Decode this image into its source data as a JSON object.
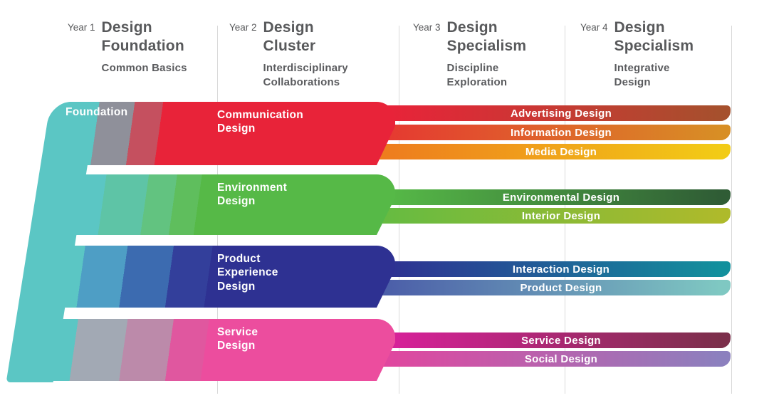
{
  "page": {
    "background": "#ffffff",
    "divider_color": "#d9d9d9"
  },
  "columns": [
    {
      "year": "Year 1",
      "title": "Design\nFoundation",
      "subtitle": "Common Basics"
    },
    {
      "year": "Year 2",
      "title": "Design\nCluster",
      "subtitle": "Interdisciplinary\nCollaborations"
    },
    {
      "year": "Year 3",
      "title": "Design\nSpecialism",
      "subtitle": "Discipline\nExploration"
    },
    {
      "year": "Year 4",
      "title": "Design\nSpecialism",
      "subtitle": "Integrative\nDesign"
    }
  ],
  "foundation": {
    "label": "Foundation",
    "color": "#5BC6C4"
  },
  "clusters": [
    {
      "label": "Communication\nDesign",
      "color": "#E82339",
      "slices": [
        {
          "color": "#5BC6C4",
          "end": 14
        },
        {
          "color": "#8F909A",
          "end": 24
        },
        {
          "color": "#C5505F",
          "end": 32
        },
        {
          "color": "#E82339",
          "end": 100
        }
      ],
      "specialisms": [
        {
          "label": "Advertising Design",
          "from": "#E82339",
          "to": "#A6502D"
        },
        {
          "label": "Information Design",
          "from": "#E53A31",
          "to": "#D88E25"
        },
        {
          "label": "Media Design",
          "from": "#EE7D1E",
          "to": "#F2CB16"
        }
      ]
    },
    {
      "label": "Environment\nDesign",
      "color": "#56B947",
      "slices": [
        {
          "color": "#5BC6C4",
          "end": 16
        },
        {
          "color": "#5EC4A6",
          "end": 28
        },
        {
          "color": "#62C380",
          "end": 36
        },
        {
          "color": "#5FBE5D",
          "end": 43
        },
        {
          "color": "#56B947",
          "end": 100
        }
      ],
      "specialisms": [
        {
          "label": "Environmental Design",
          "from": "#56B947",
          "to": "#2F5C35"
        },
        {
          "label": "Interior Design",
          "from": "#67BB41",
          "to": "#AEBA2B"
        }
      ]
    },
    {
      "label": "Product\nExperience\nDesign",
      "color": "#2E3192",
      "slices": [
        {
          "color": "#5BC6C4",
          "end": 10
        },
        {
          "color": "#4E9EC5",
          "end": 22
        },
        {
          "color": "#3C6BB0",
          "end": 35
        },
        {
          "color": "#333F9B",
          "end": 46
        },
        {
          "color": "#2E3192",
          "end": 100
        }
      ],
      "specialisms": [
        {
          "label": "Interaction Design",
          "from": "#2E3192",
          "to": "#12909D"
        },
        {
          "label": "Product Design",
          "from": "#4C5FA9",
          "to": "#7FC8C2"
        }
      ]
    },
    {
      "label": "Service\nDesign",
      "color": "#EC4D9E",
      "slices": [
        {
          "color": "#5BC6C4",
          "end": 8
        },
        {
          "color": "#A2A9B4",
          "end": 22
        },
        {
          "color": "#BC8AAA",
          "end": 35
        },
        {
          "color": "#E0579F",
          "end": 45
        },
        {
          "color": "#EC4D9E",
          "end": 100
        }
      ],
      "specialisms": [
        {
          "label": "Service Design",
          "from": "#D8219A",
          "to": "#7C2F4B"
        },
        {
          "label": "Social Design",
          "from": "#E0479F",
          "to": "#8C80BE"
        }
      ]
    }
  ]
}
